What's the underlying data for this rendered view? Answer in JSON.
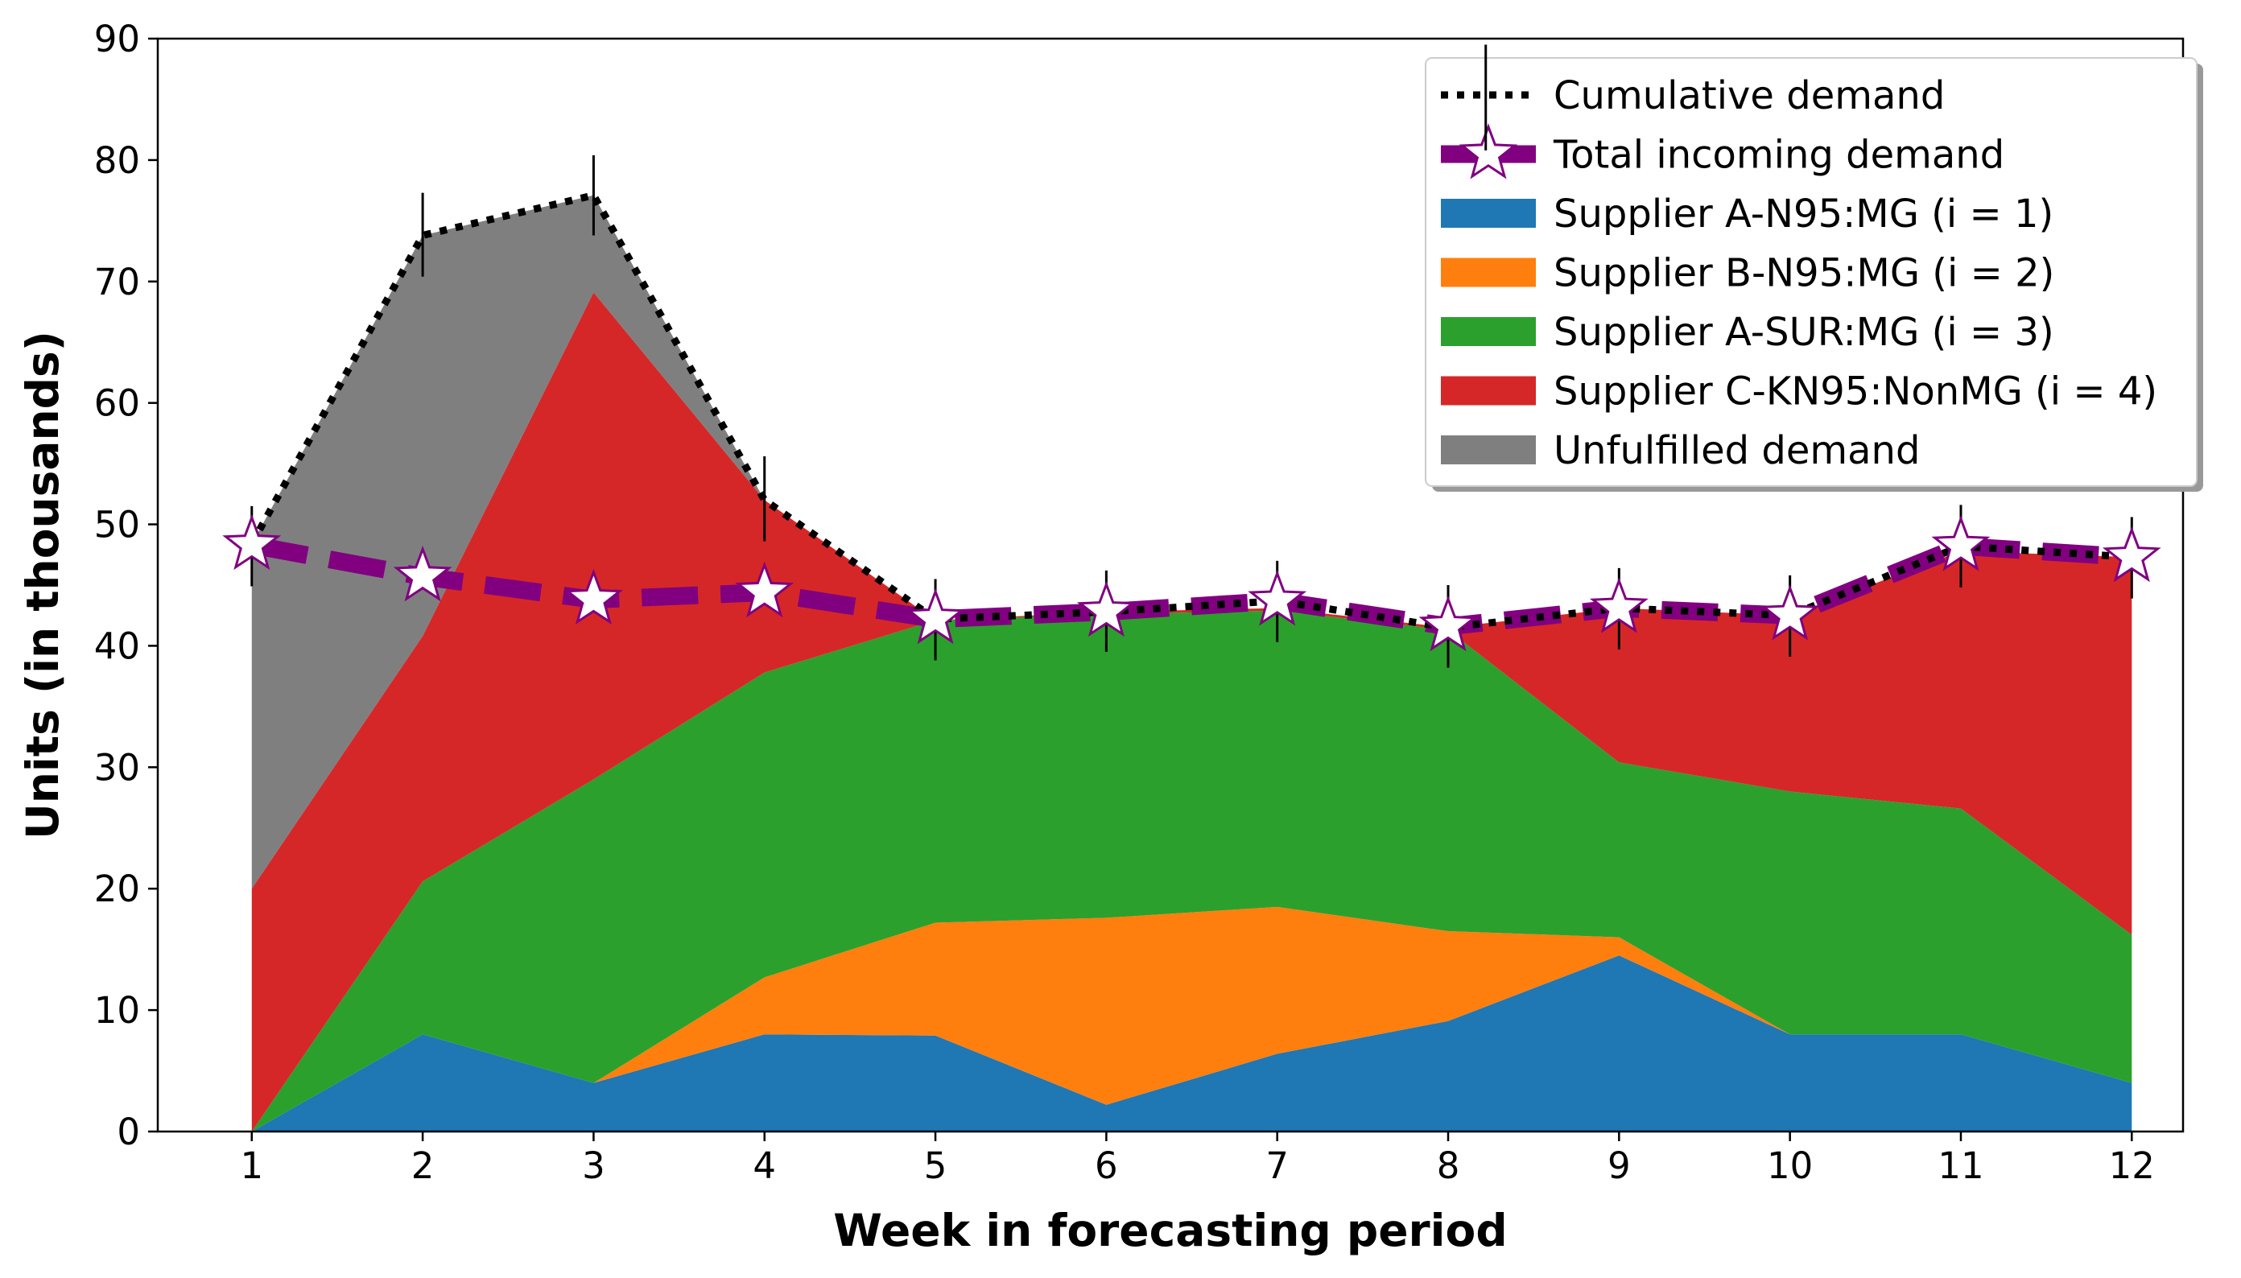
{
  "chart_data": {
    "type": "area",
    "title": "",
    "xlabel": "Week in forecasting period",
    "ylabel": "Units (in thousands)",
    "xlim": [
      0.45,
      12.3
    ],
    "ylim": [
      0,
      90
    ],
    "x": [
      1,
      2,
      3,
      4,
      5,
      6,
      7,
      8,
      9,
      10,
      11,
      12
    ],
    "x_ticks": [
      "1",
      "2",
      "3",
      "4",
      "5",
      "6",
      "7",
      "8",
      "9",
      "10",
      "11",
      "12"
    ],
    "y_ticks": [
      0,
      10,
      20,
      30,
      40,
      50,
      60,
      70,
      80,
      90
    ],
    "grid": false,
    "legend_position": "top-right",
    "stacked_series": [
      {
        "name": "Supplier A-N95:MG (i = 1)",
        "color": "#1f77b4",
        "values": [
          0,
          8.0,
          4.0,
          8.0,
          7.9,
          2.2,
          6.4,
          9.1,
          14.5,
          8.0,
          8.0,
          4.0
        ]
      },
      {
        "name": "Supplier B-N95:MG (i = 2)",
        "color": "#ff7f0e",
        "values": [
          0,
          0,
          0,
          4.7,
          9.3,
          15.4,
          12.1,
          7.4,
          1.5,
          0,
          0,
          0
        ]
      },
      {
        "name": "Supplier A-SUR:MG (i = 3)",
        "color": "#2ca02c",
        "values": [
          0,
          12.6,
          25.0,
          25.1,
          24.9,
          25.0,
          24.4,
          24.8,
          14.4,
          20.0,
          18.6,
          12.2
        ]
      },
      {
        "name": "Supplier C-KN95:NonMG (i = 4)",
        "color": "#d62728",
        "values": [
          20.0,
          20.2,
          40.1,
          14.2,
          0,
          0.2,
          0.2,
          0.2,
          12.7,
          14.5,
          21.2,
          31.1
        ]
      },
      {
        "name": "Unfulfilled demand",
        "color": "#7f7f7f",
        "values": [
          28.4,
          33.0,
          8.0,
          0,
          0,
          0,
          0,
          0,
          0,
          0,
          0,
          0
        ]
      }
    ],
    "lines": [
      {
        "name": "Cumulative demand",
        "color": "#000000",
        "style": "dotted",
        "values": [
          48.4,
          73.8,
          77.1,
          52.0,
          42.2,
          42.8,
          43.7,
          41.5,
          43.1,
          42.5,
          48.2,
          47.3
        ],
        "error_low": [
          44.9,
          70.4,
          73.8,
          48.6,
          38.8,
          39.5,
          40.3,
          38.2,
          39.7,
          39.1,
          44.8,
          43.9
        ],
        "error_high": [
          51.5,
          77.3,
          80.4,
          55.6,
          45.5,
          46.2,
          47.0,
          45.0,
          46.4,
          45.8,
          51.6,
          50.6
        ]
      },
      {
        "name": "Total incoming demand",
        "color": "#800080",
        "style": "dashed",
        "marker": "star",
        "marker_fill": "#ffffff",
        "values": [
          48.3,
          45.7,
          43.8,
          44.4,
          42.2,
          42.8,
          43.7,
          41.6,
          43.1,
          42.5,
          48.2,
          47.3
        ]
      }
    ],
    "legend_extra_errorbar": {
      "x": 8.22,
      "low": 80.8,
      "high": 89.5
    }
  }
}
